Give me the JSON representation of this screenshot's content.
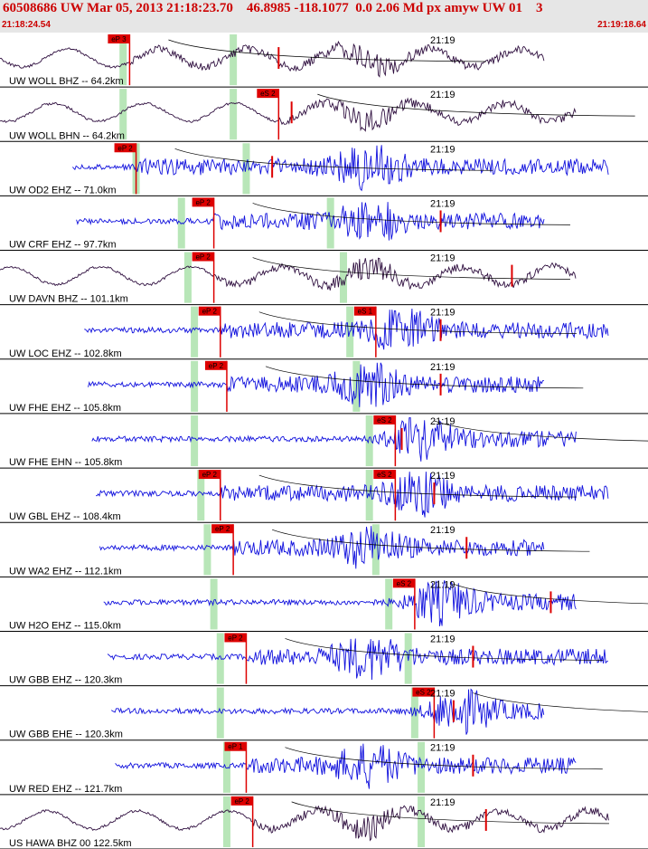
{
  "header": {
    "title": "60508686 UW Mar 05, 2013 21:18:23.70    46.8985 -118.1077  0.0 2.06 Md px amyw UW 01    3",
    "start_time": "21:18:24.54",
    "end_time": "21:19:18.64"
  },
  "chart_data": {
    "type": "seismogram",
    "minute_mark": "21:19",
    "colors": {
      "dark_trace": "#301040",
      "blue_trace": "#1010dd",
      "pick": "#dd0000",
      "window": "#b8e6b8",
      "separator": "#000000"
    },
    "traces": [
      {
        "label": "UW WOLL BHZ -- 64.2km",
        "color": "dark",
        "picks": [
          {
            "label": "eP 3",
            "t": 0.2
          }
        ],
        "windows": [
          0.19,
          0.36
        ],
        "extra_pick_t": 0.43
      },
      {
        "label": "UW WOLL BHN -- 64.2km",
        "color": "dark",
        "picks": [
          {
            "label": "eS 2",
            "t": 0.43
          }
        ],
        "windows": [
          0.19,
          0.36
        ],
        "extra_pick_t": 0.45
      },
      {
        "label": "UW OD2 EHZ -- 71.0km",
        "color": "blue",
        "picks": [
          {
            "label": "eP 2",
            "t": 0.21
          }
        ],
        "windows": [
          0.21,
          0.38
        ],
        "extra_pick_t": 0.42
      },
      {
        "label": "UW CRF EHZ -- 97.7km",
        "color": "blue",
        "picks": [
          {
            "label": "eP 2",
            "t": 0.33
          }
        ],
        "windows": [
          0.28,
          0.51
        ],
        "extra_pick_t": 0.68
      },
      {
        "label": "UW DAVN BHZ -- 101.1km",
        "color": "dark",
        "picks": [
          {
            "label": "eP 2",
            "t": 0.33
          }
        ],
        "windows": [
          0.29,
          0.53
        ],
        "extra_pick_t": 0.79
      },
      {
        "label": "UW LOC EHZ -- 102.8km",
        "color": "blue",
        "picks": [
          {
            "label": "eP 2",
            "t": 0.34
          },
          {
            "label": "eS 1",
            "t": 0.58
          }
        ],
        "windows": [
          0.3,
          0.54
        ],
        "extra_pick_t": 0.68
      },
      {
        "label": "UW FHE EHZ -- 105.8km",
        "color": "blue",
        "picks": [
          {
            "label": "eP 2",
            "t": 0.35
          }
        ],
        "windows": [
          0.3,
          0.55
        ],
        "extra_pick_t": 0.68
      },
      {
        "label": "UW FHE EHN -- 105.8km",
        "color": "blue",
        "picks": [
          {
            "label": "eS 2",
            "t": 0.61
          }
        ],
        "windows": [
          0.3,
          0.57
        ],
        "extra_pick_t": 0.62
      },
      {
        "label": "UW GBL EHZ -- 108.4km",
        "color": "blue",
        "picks": [
          {
            "label": "eP 2",
            "t": 0.34
          },
          {
            "label": "eS 2",
            "t": 0.61
          }
        ],
        "windows": [
          0.31,
          0.57
        ],
        "extra_pick_t": 0.67
      },
      {
        "label": "UW WA2 EHZ -- 112.1km",
        "color": "blue",
        "picks": [
          {
            "label": "eP 2",
            "t": 0.36
          }
        ],
        "windows": [
          0.32,
          0.58
        ],
        "extra_pick_t": 0.72
      },
      {
        "label": "UW H2O EHZ -- 115.0km",
        "color": "blue",
        "picks": [
          {
            "label": "eS 2",
            "t": 0.64
          }
        ],
        "windows": [
          0.33,
          0.6
        ],
        "extra_pick_t": 0.85
      },
      {
        "label": "UW GBB EHZ -- 120.3km",
        "color": "blue",
        "picks": [
          {
            "label": "eP 2",
            "t": 0.38
          }
        ],
        "windows": [
          0.34,
          0.63
        ],
        "extra_pick_t": 0.73
      },
      {
        "label": "UW GBB EHE -- 120.3km",
        "color": "blue",
        "picks": [
          {
            "label": "eS 2",
            "t": 0.67
          }
        ],
        "windows": [
          0.34,
          0.64
        ],
        "extra_pick_t": 0.7
      },
      {
        "label": "UW RED EHZ -- 121.7km",
        "color": "blue",
        "picks": [
          {
            "label": "eP 1",
            "t": 0.38
          }
        ],
        "windows": [
          0.35,
          0.65
        ],
        "extra_pick_t": 0.73
      },
      {
        "label": "US HAWA BHZ 00 122.5km",
        "color": "dark",
        "picks": [
          {
            "label": "eP 2",
            "t": 0.39
          }
        ],
        "windows": [
          0.35,
          0.65
        ],
        "extra_pick_t": 0.75
      }
    ]
  }
}
